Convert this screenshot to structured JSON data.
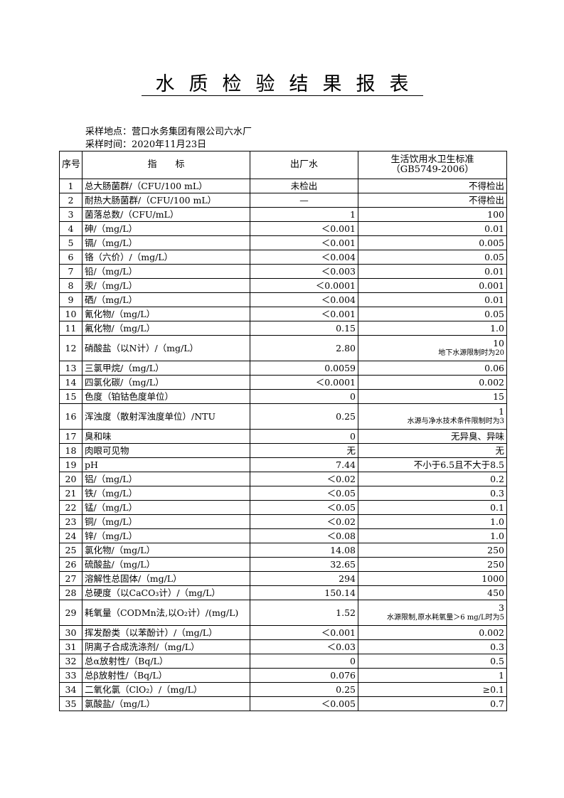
{
  "header": {
    "title": "水质检验结果报表",
    "location": "采样地点：营口水务集团有限公司六水厂",
    "time": "采样时间：2020年11月23日"
  },
  "table": {
    "columns": [
      "序号",
      "指　　标",
      "出厂水",
      "生活饮用水卫生标准",
      "（GB5749-2006）"
    ],
    "rows": [
      {
        "no": 1,
        "item": "总大肠菌群/（CFU/100 mL）",
        "result": "未检出",
        "standard": "不得检出"
      },
      {
        "no": 2,
        "item": "耐热大肠菌群/（CFU/100 mL）",
        "result": "—",
        "standard": "不得检出"
      },
      {
        "no": 3,
        "item": "菌落总数/（CFU/mL）",
        "result": "1",
        "standard": "100"
      },
      {
        "no": 4,
        "item": "砷/（mg/L）",
        "result": "＜0.001",
        "standard": "0.01"
      },
      {
        "no": 5,
        "item": "镉/（mg/L）",
        "result": "＜0.001",
        "standard": "0.005"
      },
      {
        "no": 6,
        "item": "铬（六价）/（mg/L）",
        "result": "＜0.004",
        "standard": "0.05"
      },
      {
        "no": 7,
        "item": "铅/（mg/L）",
        "result": "＜0.003",
        "standard": "0.01"
      },
      {
        "no": 8,
        "item": "汞/（mg/L）",
        "result": "＜0.0001",
        "standard": "0.001"
      },
      {
        "no": 9,
        "item": "硒/（mg/L）",
        "result": "＜0.004",
        "standard": "0.01"
      },
      {
        "no": 10,
        "item": "氰化物/（mg/L）",
        "result": "＜0.001",
        "standard": "0.05"
      },
      {
        "no": 11,
        "item": "氟化物/（mg/L）",
        "result": "0.15",
        "standard": "1.0"
      },
      {
        "no": 12,
        "item": "硝酸盐（以N计）/（mg/L）",
        "result": "2.80",
        "standard": "10",
        "note": "地下水源限制时为20"
      },
      {
        "no": 13,
        "item": "三氯甲烷/（mg/L）",
        "result": "0.0059",
        "standard": "0.06"
      },
      {
        "no": 14,
        "item": "四氯化碳/（mg/L）",
        "result": "＜0.0001",
        "standard": "0.002"
      },
      {
        "no": 15,
        "item": "色度（铂钴色度单位）",
        "result": "0",
        "standard": "15"
      },
      {
        "no": 16,
        "item": "浑浊度（散射浑浊度单位）/NTU",
        "result": "0.25",
        "standard": "1",
        "note": "水源与净水技术条件限制时为3"
      },
      {
        "no": 17,
        "item": "臭和味",
        "result": "0",
        "standard": "无异臭、异味"
      },
      {
        "no": 18,
        "item": "肉眼可见物",
        "result": "无",
        "standard": "无"
      },
      {
        "no": 19,
        "item": "pH",
        "result": "7.44",
        "standard": "不小于6.5且不大于8.5"
      },
      {
        "no": 20,
        "item": "铝/（mg/L）",
        "result": "＜0.02",
        "standard": "0.2"
      },
      {
        "no": 21,
        "item": "铁/（mg/L）",
        "result": "＜0.05",
        "standard": "0.3"
      },
      {
        "no": 22,
        "item": "锰/（mg/L）",
        "result": "＜0.05",
        "standard": "0.1"
      },
      {
        "no": 23,
        "item": "铜/（mg/L）",
        "result": "＜0.02",
        "standard": "1.0"
      },
      {
        "no": 24,
        "item": "锌/（mg/L）",
        "result": "＜0.08",
        "standard": "1.0"
      },
      {
        "no": 25,
        "item": "氯化物/（mg/L）",
        "result": "14.08",
        "standard": "250"
      },
      {
        "no": 26,
        "item": "硫酸盐/（mg/L）",
        "result": "32.65",
        "standard": "250"
      },
      {
        "no": 27,
        "item": "溶解性总固体/（mg/L）",
        "result": "294",
        "standard": "1000"
      },
      {
        "no": 28,
        "item": "总硬度（以CaCO₃计）/（mg/L）",
        "result": "150.14",
        "standard": "450"
      },
      {
        "no": 29,
        "item": "耗氧量（CODMn法,以O₂计）/(mg/L)",
        "result": "1.52",
        "standard": "3",
        "note": "水源限制,原水耗氧量＞6 mg/L时为5"
      },
      {
        "no": 30,
        "item": "挥发酚类（以苯酚计）/（mg/L）",
        "result": "＜0.001",
        "standard": "0.002"
      },
      {
        "no": 31,
        "item": "阴离子合成洗涤剂/（mg/L）",
        "result": "＜0.03",
        "standard": "0.3"
      },
      {
        "no": 32,
        "item": "总α放射性/（Bq/L）",
        "result": "0",
        "standard": "0.5"
      },
      {
        "no": 33,
        "item": "总β放射性/（Bq/L）",
        "result": "0.076",
        "standard": "1"
      },
      {
        "no": 34,
        "item": "二氧化氯（ClO₂）/（mg/L）",
        "result": "0.25",
        "standard": "≥0.1"
      },
      {
        "no": 35,
        "item": "氯酸盐/（mg/L）",
        "result": "＜0.005",
        "standard": "0.7"
      }
    ]
  }
}
